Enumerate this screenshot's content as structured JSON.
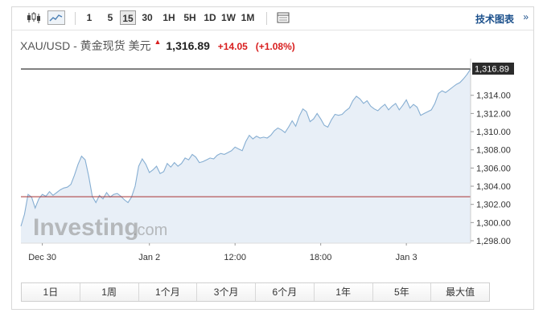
{
  "toolbar": {
    "candlestick_icon": "candlestick-icon",
    "line_icon": "line-chart-icon",
    "timeframes": [
      "1",
      "5",
      "15",
      "30",
      "1H",
      "5H",
      "1D",
      "1W",
      "1M"
    ],
    "selected_timeframe": "15",
    "table_icon": "table-icon",
    "technical_link": "技术图表",
    "arrow_icon": "double-chevron-icon"
  },
  "quote": {
    "pair": "XAU/USD - 黄金现货 美元",
    "price": "1,316.89",
    "change": "+14.05",
    "change_pct": "(+1.08%)",
    "color_up": "#d81e1e"
  },
  "watermark": {
    "brand": "Investing",
    "suffix": ".com"
  },
  "range_buttons": [
    "1日",
    "1周",
    "1个月",
    "3个月",
    "6个月",
    "1年",
    "5年",
    "最大值"
  ],
  "chart_data": {
    "type": "area",
    "title": "",
    "ylim": [
      1297.8,
      1316.89
    ],
    "y_ticks": [
      1298,
      1300,
      1302,
      1304,
      1306,
      1308,
      1310,
      1312,
      1314
    ],
    "y_tick_labels": [
      "1,298.00",
      "1,300.00",
      "1,302.00",
      "1,304.00",
      "1,306.00",
      "1,308.00",
      "1,310.00",
      "1,312.00",
      "1,314.00"
    ],
    "x_tick_labels": [
      "Dec 30",
      "Jan 2",
      "12:00",
      "18:00",
      "Jan 3"
    ],
    "x_tick_index": [
      6,
      36,
      60,
      84,
      108
    ],
    "last_value": 1316.89,
    "last_value_label": "1,316.89",
    "reference_line": 1302.84,
    "colors": {
      "line": "#86aed2",
      "fill": "#e8eff7",
      "last_line": "#000000",
      "reference": "#a83232"
    },
    "series": [
      {
        "values": [
          1299.6,
          1300.9,
          1303.1,
          1302.8,
          1301.6,
          1302.6,
          1303.1,
          1302.9,
          1303.4,
          1303.0,
          1303.3,
          1303.6,
          1303.8,
          1303.9,
          1304.2,
          1305.2,
          1306.4,
          1307.3,
          1306.9,
          1305.1,
          1302.9,
          1302.2,
          1303.0,
          1302.6,
          1303.3,
          1302.8,
          1303.1,
          1303.2,
          1302.9,
          1302.5,
          1302.2,
          1302.8,
          1304.0,
          1306.2,
          1307.0,
          1306.4,
          1305.5,
          1305.8,
          1306.2,
          1305.4,
          1305.6,
          1306.5,
          1306.1,
          1306.6,
          1306.2,
          1306.5,
          1307.1,
          1306.9,
          1307.5,
          1307.2,
          1306.6,
          1306.7,
          1306.9,
          1307.1,
          1307.0,
          1307.4,
          1307.6,
          1307.5,
          1307.7,
          1307.9,
          1308.3,
          1308.1,
          1307.9,
          1308.9,
          1309.6,
          1309.2,
          1309.5,
          1309.3,
          1309.4,
          1309.3,
          1309.6,
          1310.1,
          1310.4,
          1310.2,
          1309.9,
          1310.5,
          1311.2,
          1310.6,
          1311.7,
          1312.5,
          1312.2,
          1311.1,
          1311.4,
          1312.0,
          1311.4,
          1310.7,
          1310.5,
          1311.3,
          1311.9,
          1311.8,
          1311.9,
          1312.3,
          1312.6,
          1313.4,
          1313.9,
          1313.6,
          1313.1,
          1313.4,
          1312.8,
          1312.5,
          1312.3,
          1312.7,
          1313.0,
          1312.4,
          1312.8,
          1313.1,
          1312.4,
          1312.9,
          1313.5,
          1312.6,
          1313.0,
          1312.7,
          1311.8,
          1312.0,
          1312.2,
          1312.4,
          1313.1,
          1314.2,
          1314.5,
          1314.3,
          1314.6,
          1314.9,
          1315.2,
          1315.4,
          1315.8,
          1316.3,
          1316.89
        ]
      }
    ]
  }
}
